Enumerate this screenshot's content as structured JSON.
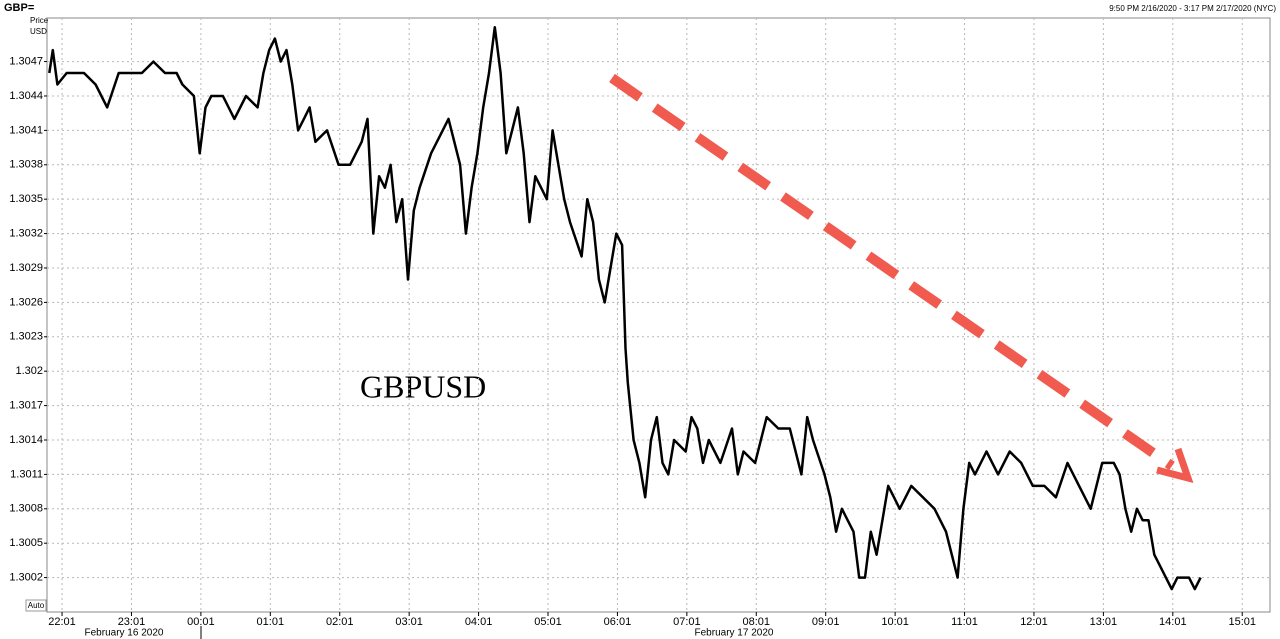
{
  "chart_data": {
    "type": "line",
    "title": "GBP=",
    "subtitle": "9:50 PM 2/16/2020 - 3:17 PM 2/17/2020 (NYC)",
    "ylabel_lines": [
      "Price",
      "USD"
    ],
    "annotations": [
      "GBPUSD",
      "Auto"
    ],
    "date_labels": [
      "February 16 2020",
      "February 17 2020"
    ],
    "x": [
      "21:50",
      "21:53",
      "21:57",
      "22:05",
      "22:20",
      "22:30",
      "22:40",
      "22:50",
      "23:10",
      "23:20",
      "23:30",
      "23:40",
      "23:45",
      "23:55",
      "00:00",
      "00:05",
      "00:10",
      "00:20",
      "00:30",
      "00:40",
      "00:50",
      "00:55",
      "01:00",
      "01:05",
      "01:10",
      "01:15",
      "01:20",
      "01:25",
      "01:30",
      "01:35",
      "01:40",
      "01:50",
      "02:00",
      "02:10",
      "02:20",
      "02:25",
      "02:30",
      "02:35",
      "02:40",
      "02:45",
      "02:50",
      "02:55",
      "03:00",
      "03:05",
      "03:10",
      "03:20",
      "03:30",
      "03:35",
      "03:40",
      "03:45",
      "03:50",
      "03:55",
      "04:00",
      "04:05",
      "04:10",
      "04:15",
      "04:20",
      "04:25",
      "04:30",
      "04:35",
      "04:40",
      "04:45",
      "04:50",
      "04:55",
      "05:00",
      "05:05",
      "05:15",
      "05:20",
      "05:30",
      "05:35",
      "05:40",
      "05:45",
      "05:50",
      "05:55",
      "06:00",
      "06:05",
      "06:08",
      "06:10",
      "06:15",
      "06:20",
      "06:25",
      "06:30",
      "06:35",
      "06:40",
      "06:45",
      "06:50",
      "07:00",
      "07:05",
      "07:10",
      "07:15",
      "07:20",
      "07:30",
      "07:40",
      "07:45",
      "07:50",
      "08:00",
      "08:10",
      "08:20",
      "08:30",
      "08:40",
      "08:45",
      "08:50",
      "09:00",
      "09:05",
      "09:10",
      "09:15",
      "09:20",
      "09:25",
      "09:30",
      "09:35",
      "09:40",
      "09:45",
      "09:50",
      "09:55",
      "10:00",
      "10:05",
      "10:15",
      "10:25",
      "10:35",
      "10:45",
      "10:50",
      "10:55",
      "11:00",
      "11:05",
      "11:10",
      "11:20",
      "11:30",
      "11:40",
      "11:50",
      "12:00",
      "12:10",
      "12:20",
      "12:30",
      "12:40",
      "12:50",
      "13:00",
      "13:10",
      "13:15",
      "13:20",
      "13:25",
      "13:30",
      "13:35",
      "13:40",
      "13:45",
      "13:50",
      "13:55",
      "14:00",
      "14:05",
      "14:10",
      "14:15",
      "14:20",
      "14:25"
    ],
    "values": [
      1.3046,
      1.3048,
      1.3045,
      1.3046,
      1.3046,
      1.3045,
      1.3043,
      1.3046,
      1.3046,
      1.3047,
      1.3046,
      1.3046,
      1.3045,
      1.3044,
      1.3039,
      1.3043,
      1.3044,
      1.3044,
      1.3042,
      1.3044,
      1.3043,
      1.3046,
      1.3048,
      1.3049,
      1.3047,
      1.3048,
      1.3045,
      1.3041,
      1.3042,
      1.3043,
      1.304,
      1.3041,
      1.3038,
      1.3038,
      1.304,
      1.3042,
      1.3032,
      1.3037,
      1.3036,
      1.3038,
      1.3033,
      1.3035,
      1.3028,
      1.3034,
      1.3036,
      1.3039,
      1.3041,
      1.3042,
      1.304,
      1.3038,
      1.3032,
      1.3036,
      1.3039,
      1.3043,
      1.3046,
      1.305,
      1.3046,
      1.3039,
      1.3041,
      1.3043,
      1.3039,
      1.3033,
      1.3037,
      1.3036,
      1.3035,
      1.3041,
      1.3035,
      1.3033,
      1.303,
      1.3035,
      1.3033,
      1.3028,
      1.3026,
      1.3029,
      1.3032,
      1.3031,
      1.3022,
      1.3019,
      1.3014,
      1.3012,
      1.3009,
      1.3014,
      1.3016,
      1.3012,
      1.3011,
      1.3014,
      1.3013,
      1.3016,
      1.3015,
      1.3012,
      1.3014,
      1.3012,
      1.3015,
      1.3011,
      1.3013,
      1.3012,
      1.3016,
      1.3015,
      1.3015,
      1.3011,
      1.3016,
      1.3014,
      1.3011,
      1.3009,
      1.3006,
      1.3008,
      1.3007,
      1.3006,
      1.3002,
      1.3002,
      1.3006,
      1.3004,
      1.3007,
      1.301,
      1.3009,
      1.3008,
      1.301,
      1.3009,
      1.3008,
      1.3006,
      1.3004,
      1.3002,
      1.3008,
      1.3012,
      1.3011,
      1.3013,
      1.3011,
      1.3013,
      1.3012,
      1.301,
      1.301,
      1.3009,
      1.3012,
      1.301,
      1.3008,
      1.3012,
      1.3012,
      1.3011,
      1.3008,
      1.3006,
      1.3008,
      1.3007,
      1.3007,
      1.3004,
      1.3003,
      1.3002,
      1.3001,
      1.3002,
      1.3002,
      1.3002,
      1.3001,
      1.3002
    ],
    "color": "#000000",
    "xlim": [
      "21:48",
      "15:25"
    ],
    "xticks": [
      "22:01",
      "23:01",
      "00:01",
      "01:01",
      "02:01",
      "03:01",
      "04:01",
      "05:01",
      "06:01",
      "07:01",
      "08:01",
      "09:01",
      "10:01",
      "11:01",
      "12:01",
      "13:01",
      "14:01",
      "15:01"
    ],
    "ylim": [
      1.2999,
      1.30508
    ],
    "yticks": [
      1.3047,
      1.3044,
      1.3041,
      1.3038,
      1.3035,
      1.3032,
      1.3029,
      1.3026,
      1.3023,
      1.302,
      1.3017,
      1.3014,
      1.3011,
      1.3008,
      1.3005,
      1.3002
    ],
    "grid": true
  }
}
